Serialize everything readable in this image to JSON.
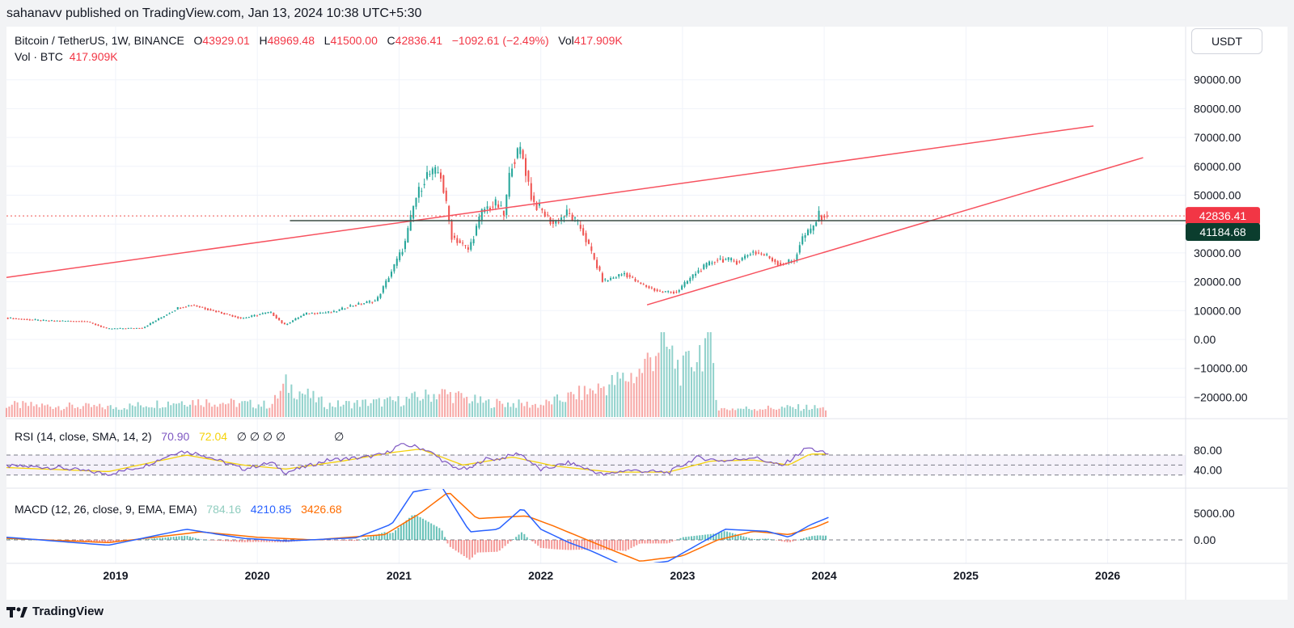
{
  "header": {
    "publisher": "sahanavv published on TradingView.com, Jan 13, 2024 10:38 UTC+5:30"
  },
  "legend": {
    "symbol": "Bitcoin / TetherUS, 1W, BINANCE",
    "o_label": "O",
    "o": "43929.01",
    "h_label": "H",
    "h": "48969.48",
    "l_label": "L",
    "l": "41500.00",
    "c_label": "C",
    "c": "42836.41",
    "change": "−1092.61 (−2.49%)",
    "vol_label": "Vol",
    "vol": "417.909K",
    "vol_line_label": "Vol · BTC",
    "vol_line_value": "417.909K"
  },
  "rsi_legend": {
    "label": "RSI (14, close, SMA, 14, 2)",
    "value": "70.90",
    "sma": "72.04",
    "empty": "∅ ∅ ∅ ∅",
    "empty2": "∅"
  },
  "macd_legend": {
    "label": "MACD (12, 26, close, 9, EMA, EMA)",
    "hist": "784.16",
    "macd": "4210.85",
    "signal": "3426.68"
  },
  "price_axis_unit": "USDT",
  "price_badges": {
    "last": "42836.41",
    "level": "41184.68"
  },
  "footer": {
    "brand": "TradingView"
  },
  "colors": {
    "up": "#26a69a",
    "down": "#ef5350",
    "trend": "#f7525f",
    "rsi": "#7e57c2",
    "rsi_sma": "#f5d20a",
    "macd": "#2962ff",
    "signal": "#ff6d00"
  },
  "chart_data": {
    "type": "candlestick",
    "price_ticks": [
      90000,
      80000,
      70000,
      60000,
      50000,
      40000,
      30000,
      20000,
      10000,
      0,
      -10000,
      -20000
    ],
    "price_tick_labels": [
      "90000.00",
      "80000.00",
      "70000.00",
      "60000.00",
      "50000.00",
      "",
      "30000.00",
      "20000.00",
      "10000.00",
      "0.00",
      "−10000.00",
      "−20000.00"
    ],
    "x_ticks": [
      "2019",
      "2020",
      "2021",
      "2022",
      "2023",
      "2024",
      "2025",
      "2026"
    ],
    "x_tick_years": [
      2019,
      2020,
      2021,
      2022,
      2023,
      2024,
      2025,
      2026
    ],
    "x_range": [
      2018.23,
      2026.55
    ],
    "price_keypoints": [
      [
        2018.23,
        7500
      ],
      [
        2018.5,
        6500
      ],
      [
        2018.8,
        6300
      ],
      [
        2018.95,
        3700
      ],
      [
        2019.2,
        4000
      ],
      [
        2019.45,
        11000
      ],
      [
        2019.55,
        12000
      ],
      [
        2019.7,
        10000
      ],
      [
        2019.9,
        7300
      ],
      [
        2020.1,
        9500
      ],
      [
        2020.2,
        5000
      ],
      [
        2020.35,
        9000
      ],
      [
        2020.55,
        9500
      ],
      [
        2020.65,
        11500
      ],
      [
        2020.85,
        13500
      ],
      [
        2020.95,
        23000
      ],
      [
        2021.05,
        33000
      ],
      [
        2021.12,
        48000
      ],
      [
        2021.2,
        57000
      ],
      [
        2021.3,
        58000
      ],
      [
        2021.38,
        36000
      ],
      [
        2021.5,
        31000
      ],
      [
        2021.6,
        45000
      ],
      [
        2021.7,
        47000
      ],
      [
        2021.75,
        43000
      ],
      [
        2021.8,
        61000
      ],
      [
        2021.87,
        66000
      ],
      [
        2021.95,
        48000
      ],
      [
        2022.1,
        40000
      ],
      [
        2022.2,
        44000
      ],
      [
        2022.3,
        38000
      ],
      [
        2022.45,
        20000
      ],
      [
        2022.6,
        23000
      ],
      [
        2022.7,
        19500
      ],
      [
        2022.85,
        16500
      ],
      [
        2022.97,
        16500
      ],
      [
        2023.1,
        23000
      ],
      [
        2023.25,
        28000
      ],
      [
        2023.4,
        27000
      ],
      [
        2023.5,
        30500
      ],
      [
        2023.6,
        29000
      ],
      [
        2023.7,
        26000
      ],
      [
        2023.8,
        27500
      ],
      [
        2023.85,
        35000
      ],
      [
        2023.92,
        38000
      ],
      [
        2023.97,
        43000
      ],
      [
        2024.03,
        42836
      ]
    ],
    "volume_keypoints": [
      [
        2018.23,
        0.15
      ],
      [
        2019.0,
        0.12
      ],
      [
        2019.5,
        0.2
      ],
      [
        2020.1,
        0.15
      ],
      [
        2020.2,
        0.4
      ],
      [
        2020.5,
        0.15
      ],
      [
        2021.0,
        0.2
      ],
      [
        2021.3,
        0.3
      ],
      [
        2021.6,
        0.18
      ],
      [
        2022.0,
        0.15
      ],
      [
        2022.4,
        0.35
      ],
      [
        2022.7,
        0.55
      ],
      [
        2022.85,
        0.95
      ],
      [
        2023.0,
        0.55
      ],
      [
        2023.2,
        1.0
      ],
      [
        2023.25,
        0.1
      ],
      [
        2023.9,
        0.12
      ],
      [
        2024.03,
        0.1
      ]
    ],
    "trendlines": [
      {
        "from": [
          2018.23,
          21500
        ],
        "to": [
          2025.9,
          74000
        ]
      },
      {
        "from": [
          2022.75,
          12000
        ],
        "to": [
          2026.25,
          63000
        ]
      }
    ],
    "horizontal_level": {
      "from": 2020.23,
      "value": 41184.68
    },
    "last_price": 42836.41,
    "rsi": {
      "ticks": [
        80,
        40
      ],
      "tick_labels": [
        "80.00",
        "40.00"
      ],
      "band": [
        70,
        30
      ],
      "mid": 50,
      "keypoints": [
        [
          2018.23,
          48
        ],
        [
          2018.6,
          45
        ],
        [
          2018.95,
          32
        ],
        [
          2019.2,
          48
        ],
        [
          2019.45,
          78
        ],
        [
          2019.6,
          72
        ],
        [
          2019.9,
          42
        ],
        [
          2020.1,
          55
        ],
        [
          2020.2,
          35
        ],
        [
          2020.5,
          60
        ],
        [
          2020.75,
          65
        ],
        [
          2020.9,
          72
        ],
        [
          2021.0,
          90
        ],
        [
          2021.1,
          88
        ],
        [
          2021.2,
          80
        ],
        [
          2021.38,
          45
        ],
        [
          2021.5,
          42
        ],
        [
          2021.6,
          62
        ],
        [
          2021.7,
          62
        ],
        [
          2021.85,
          74
        ],
        [
          2022.0,
          40
        ],
        [
          2022.2,
          55
        ],
        [
          2022.45,
          30
        ],
        [
          2022.6,
          40
        ],
        [
          2022.9,
          35
        ],
        [
          2023.1,
          65
        ],
        [
          2023.3,
          58
        ],
        [
          2023.5,
          66
        ],
        [
          2023.7,
          48
        ],
        [
          2023.88,
          85
        ],
        [
          2024.03,
          71
        ]
      ],
      "sma_keypoints": [
        [
          2018.23,
          45
        ],
        [
          2018.95,
          37
        ],
        [
          2019.5,
          70
        ],
        [
          2019.9,
          50
        ],
        [
          2020.2,
          42
        ],
        [
          2020.6,
          58
        ],
        [
          2020.95,
          75
        ],
        [
          2021.15,
          82
        ],
        [
          2021.45,
          50
        ],
        [
          2021.8,
          66
        ],
        [
          2022.1,
          48
        ],
        [
          2022.5,
          36
        ],
        [
          2022.9,
          36
        ],
        [
          2023.2,
          58
        ],
        [
          2023.5,
          60
        ],
        [
          2023.75,
          50
        ],
        [
          2023.9,
          72
        ],
        [
          2024.03,
          72
        ]
      ]
    },
    "macd": {
      "ticks": [
        5000,
        0
      ],
      "tick_labels": [
        "5000.00",
        "0.00"
      ],
      "macd_keypoints": [
        [
          2018.23,
          500
        ],
        [
          2018.95,
          -1000
        ],
        [
          2019.5,
          2000
        ],
        [
          2019.9,
          300
        ],
        [
          2020.2,
          -200
        ],
        [
          2020.7,
          400
        ],
        [
          2020.95,
          3000
        ],
        [
          2021.1,
          9000
        ],
        [
          2021.3,
          10000
        ],
        [
          2021.5,
          1500
        ],
        [
          2021.7,
          2000
        ],
        [
          2021.87,
          6000
        ],
        [
          2022.0,
          2000
        ],
        [
          2022.2,
          -500
        ],
        [
          2022.35,
          -2000
        ],
        [
          2022.6,
          -5000
        ],
        [
          2022.9,
          -4000
        ],
        [
          2023.1,
          -1000
        ],
        [
          2023.3,
          2000
        ],
        [
          2023.6,
          1600
        ],
        [
          2023.75,
          500
        ],
        [
          2023.9,
          2800
        ],
        [
          2024.03,
          4211
        ]
      ],
      "signal_keypoints": [
        [
          2018.23,
          300
        ],
        [
          2018.95,
          -500
        ],
        [
          2019.6,
          1500
        ],
        [
          2020.0,
          500
        ],
        [
          2020.4,
          0
        ],
        [
          2020.9,
          1000
        ],
        [
          2021.15,
          5000
        ],
        [
          2021.35,
          9000
        ],
        [
          2021.55,
          4000
        ],
        [
          2021.9,
          4500
        ],
        [
          2022.1,
          2500
        ],
        [
          2022.4,
          -800
        ],
        [
          2022.7,
          -4000
        ],
        [
          2023.0,
          -3000
        ],
        [
          2023.25,
          0
        ],
        [
          2023.5,
          1600
        ],
        [
          2023.75,
          1000
        ],
        [
          2023.95,
          2500
        ],
        [
          2024.03,
          3427
        ]
      ]
    }
  }
}
